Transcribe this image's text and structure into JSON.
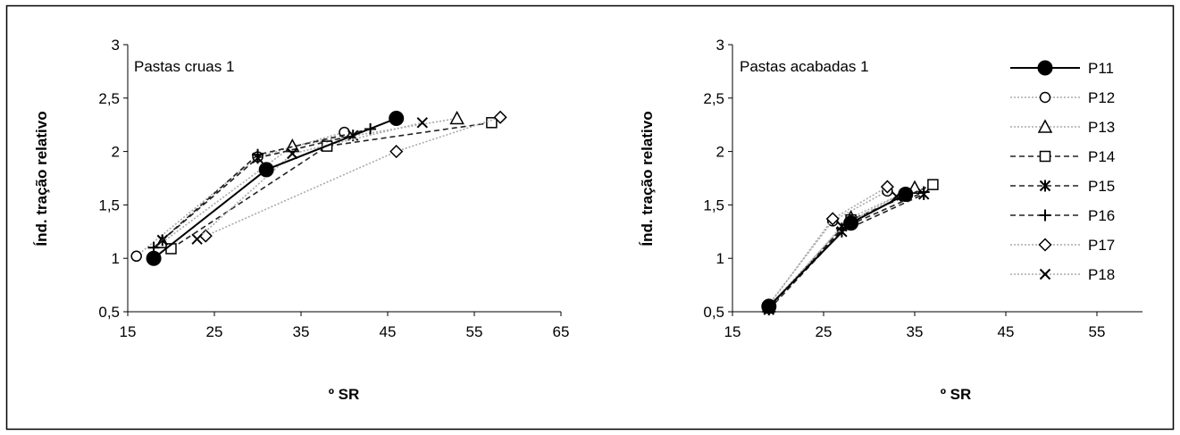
{
  "chart_data": [
    {
      "type": "line",
      "title": "Pastas cruas 1",
      "xlabel": "º SR",
      "ylabel": "Índ. tração relativo",
      "xlim": [
        15,
        65
      ],
      "ylim": [
        0.5,
        3
      ],
      "xticks": [
        "15",
        "25",
        "35",
        "45",
        "55",
        "65"
      ],
      "yticks": [
        "0,5",
        "1",
        "1,5",
        "2",
        "2,5",
        "3"
      ],
      "grid": false,
      "series": [
        {
          "name": "P11",
          "marker": "filled-circle",
          "line": "solid",
          "color": "#000000",
          "points": [
            [
              18,
              1.0
            ],
            [
              31,
              1.83
            ],
            [
              46,
              2.31
            ]
          ]
        },
        {
          "name": "P12",
          "marker": "open-circle",
          "line": "dotted",
          "color": "#aaaaaa",
          "points": [
            [
              16,
              1.02
            ],
            [
              30,
              1.95
            ],
            [
              40,
              2.18
            ]
          ]
        },
        {
          "name": "P13",
          "marker": "triangle",
          "line": "dotted",
          "color": "#aaaaaa",
          "points": [
            [
              19,
              1.15
            ],
            [
              34,
              2.05
            ],
            [
              53,
              2.31
            ]
          ]
        },
        {
          "name": "P14",
          "marker": "square",
          "line": "dashed",
          "color": "#222222",
          "points": [
            [
              20,
              1.09
            ],
            [
              38,
              2.05
            ],
            [
              57,
              2.27
            ]
          ]
        },
        {
          "name": "P15",
          "marker": "asterisk",
          "line": "dashed",
          "color": "#222222",
          "points": [
            [
              19,
              1.17
            ],
            [
              30,
              1.94
            ],
            [
              41,
              2.15
            ]
          ]
        },
        {
          "name": "P16",
          "marker": "plus",
          "line": "dashed",
          "color": "#222222",
          "points": [
            [
              18,
              1.1
            ],
            [
              30,
              1.97
            ],
            [
              43,
              2.21
            ]
          ]
        },
        {
          "name": "P17",
          "marker": "diamond",
          "line": "dotted",
          "color": "#aaaaaa",
          "points": [
            [
              24,
              1.21
            ],
            [
              46,
              2.0
            ],
            [
              58,
              2.32
            ]
          ]
        },
        {
          "name": "P18",
          "marker": "x",
          "line": "dotted",
          "color": "#aaaaaa",
          "points": [
            [
              23,
              1.18
            ],
            [
              34,
              1.98
            ],
            [
              49,
              2.27
            ]
          ]
        }
      ]
    },
    {
      "type": "line",
      "title": "Pastas acabadas 1",
      "xlabel": "º SR",
      "ylabel": "Índ. tração relativo",
      "xlim": [
        15,
        60
      ],
      "ylim": [
        0.5,
        3
      ],
      "xticks": [
        "15",
        "25",
        "35",
        "45",
        "55"
      ],
      "yticks": [
        "0,5",
        "1",
        "1,5",
        "2",
        "2,5",
        "3"
      ],
      "grid": false,
      "legend": "top-right",
      "series": [
        {
          "name": "P11",
          "marker": "filled-circle",
          "line": "solid",
          "color": "#000000",
          "points": [
            [
              19,
              0.55
            ],
            [
              28,
              1.33
            ],
            [
              34,
              1.6
            ]
          ]
        },
        {
          "name": "P12",
          "marker": "open-circle",
          "line": "dotted",
          "color": "#aaaaaa",
          "points": [
            [
              19,
              0.57
            ],
            [
              26,
              1.35
            ],
            [
              32,
              1.63
            ]
          ]
        },
        {
          "name": "P13",
          "marker": "triangle",
          "line": "dotted",
          "color": "#aaaaaa",
          "points": [
            [
              19,
              0.55
            ],
            [
              28,
              1.38
            ],
            [
              35,
              1.66
            ]
          ]
        },
        {
          "name": "P14",
          "marker": "square",
          "line": "dashed",
          "color": "#222222",
          "points": [
            [
              19,
              0.54
            ],
            [
              28,
              1.36
            ],
            [
              37,
              1.69
            ]
          ]
        },
        {
          "name": "P15",
          "marker": "asterisk",
          "line": "dashed",
          "color": "#222222",
          "points": [
            [
              19,
              0.52
            ],
            [
              27,
              1.25
            ],
            [
              36,
              1.6
            ]
          ]
        },
        {
          "name": "P16",
          "marker": "plus",
          "line": "dashed",
          "color": "#222222",
          "points": [
            [
              19,
              0.53
            ],
            [
              27,
              1.28
            ],
            [
              36,
              1.62
            ]
          ]
        },
        {
          "name": "P17",
          "marker": "diamond",
          "line": "dotted",
          "color": "#aaaaaa",
          "points": [
            [
              19,
              0.56
            ],
            [
              26,
              1.37
            ],
            [
              32,
              1.67
            ]
          ]
        },
        {
          "name": "P18",
          "marker": "x",
          "line": "dotted",
          "color": "#aaaaaa",
          "points": [
            [
              19,
              0.53
            ],
            [
              27,
              1.3
            ],
            [
              33,
              1.58
            ]
          ]
        }
      ]
    }
  ]
}
